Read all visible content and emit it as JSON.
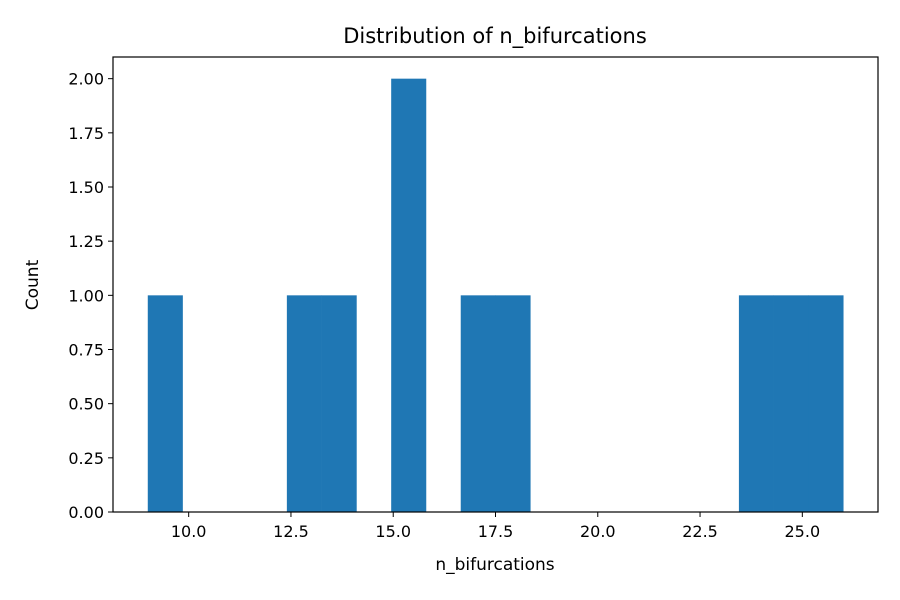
{
  "chart_data": {
    "type": "bar",
    "title": "Distribution of n_bifurcations",
    "xlabel": "n_bifurcations",
    "ylabel": "Count",
    "bins": [
      {
        "x0": 9.0,
        "x1": 9.85,
        "count": 1
      },
      {
        "x0": 9.85,
        "x1": 10.7,
        "count": 0
      },
      {
        "x0": 10.7,
        "x1": 11.55,
        "count": 0
      },
      {
        "x0": 11.55,
        "x1": 12.4,
        "count": 0
      },
      {
        "x0": 12.4,
        "x1": 13.25,
        "count": 1
      },
      {
        "x0": 13.25,
        "x1": 14.1,
        "count": 1
      },
      {
        "x0": 14.1,
        "x1": 14.95,
        "count": 0
      },
      {
        "x0": 14.95,
        "x1": 15.8,
        "count": 2
      },
      {
        "x0": 15.8,
        "x1": 16.65,
        "count": 0
      },
      {
        "x0": 16.65,
        "x1": 17.5,
        "count": 1
      },
      {
        "x0": 17.5,
        "x1": 18.35,
        "count": 1
      },
      {
        "x0": 18.35,
        "x1": 19.2,
        "count": 0
      },
      {
        "x0": 19.2,
        "x1": 20.05,
        "count": 0
      },
      {
        "x0": 20.05,
        "x1": 20.9,
        "count": 0
      },
      {
        "x0": 20.9,
        "x1": 21.75,
        "count": 0
      },
      {
        "x0": 21.75,
        "x1": 22.6,
        "count": 0
      },
      {
        "x0": 22.6,
        "x1": 23.45,
        "count": 0
      },
      {
        "x0": 23.45,
        "x1": 24.3,
        "count": 1
      },
      {
        "x0": 24.3,
        "x1": 25.15,
        "count": 1
      },
      {
        "x0": 25.15,
        "x1": 26.0,
        "count": 1
      }
    ],
    "xlim": [
      8.15,
      26.85
    ],
    "ylim": [
      0,
      2.1
    ],
    "xticks": [
      "10.0",
      "12.5",
      "15.0",
      "17.5",
      "20.0",
      "22.5",
      "25.0"
    ],
    "yticks": [
      "0.00",
      "0.25",
      "0.50",
      "0.75",
      "1.00",
      "1.25",
      "1.50",
      "1.75",
      "2.00"
    ],
    "grid": false,
    "bar_color": "#1f77b4"
  }
}
